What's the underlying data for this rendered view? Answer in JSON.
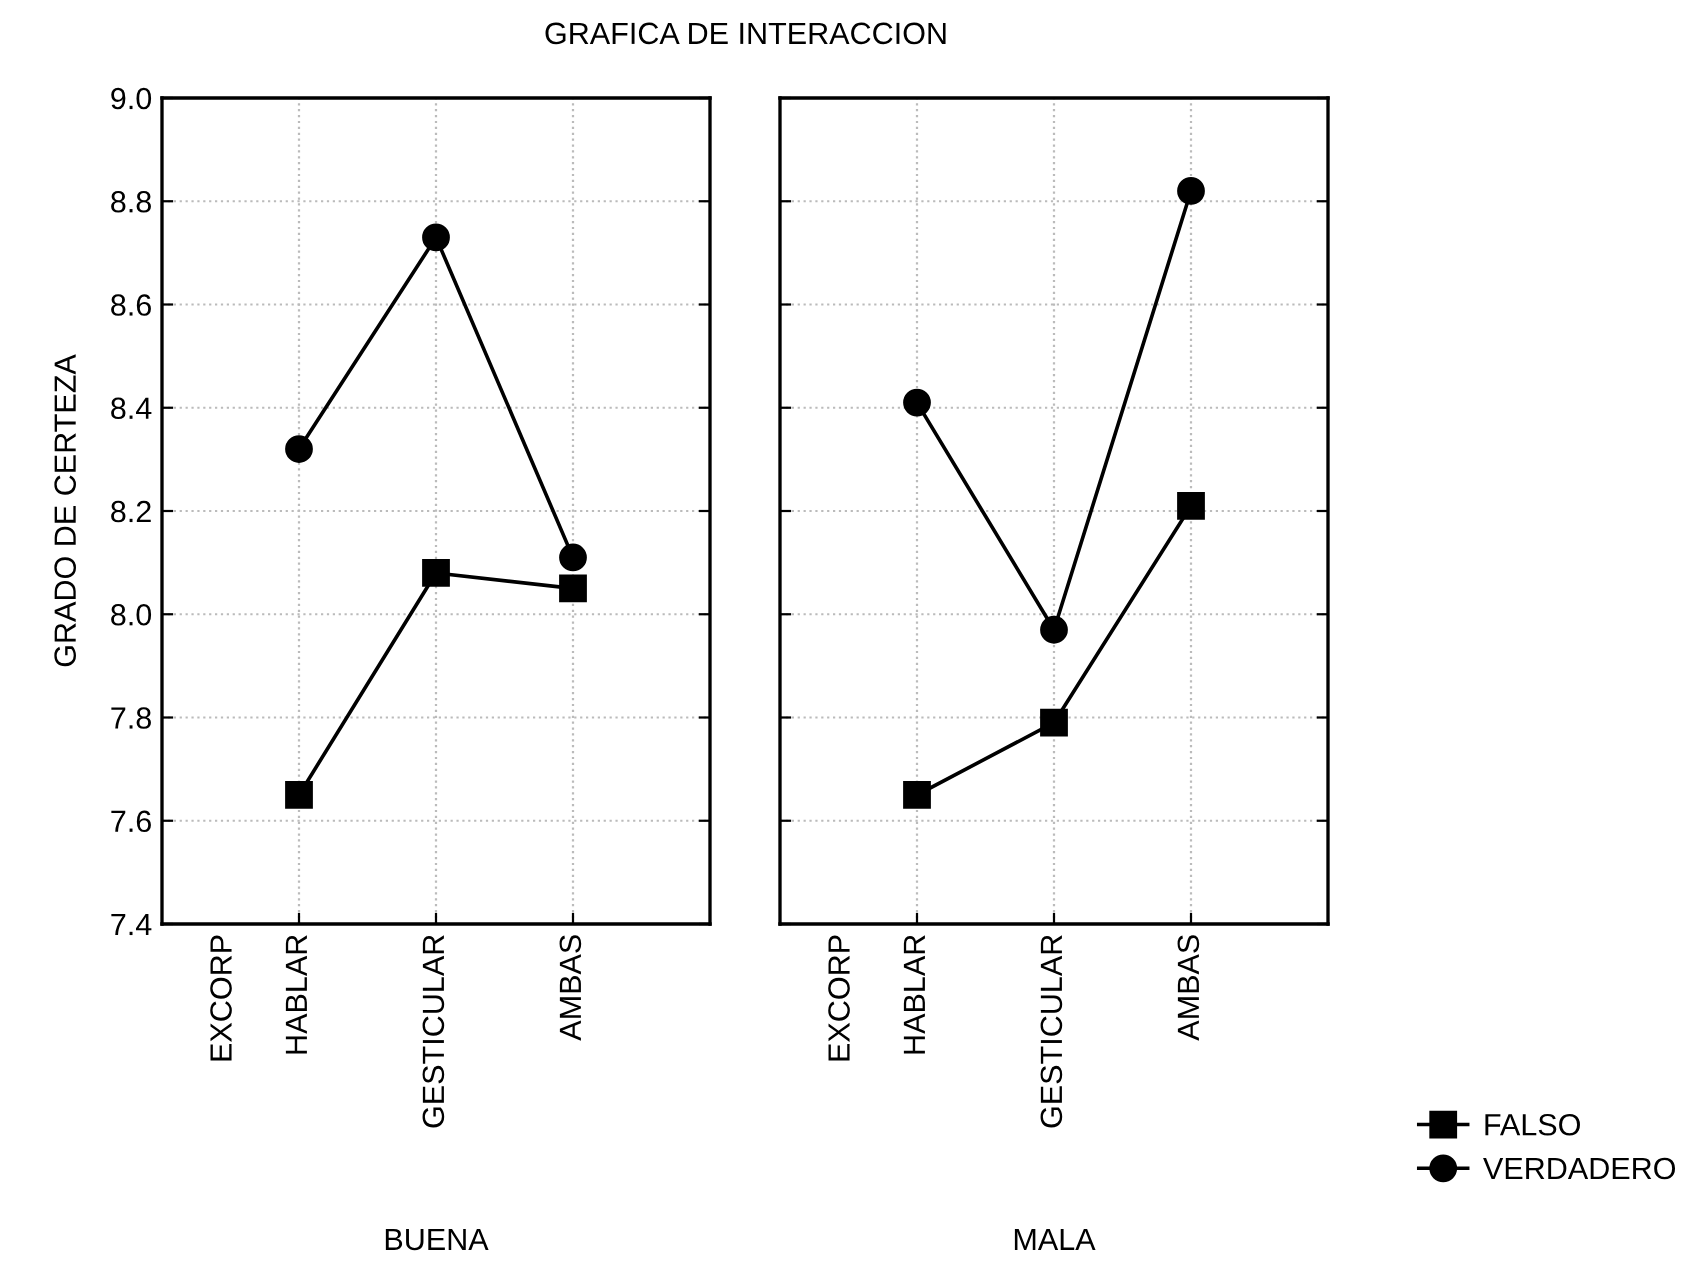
{
  "chart_data": [
    {
      "type": "line",
      "title": "GRAFICA DE INTERACCION",
      "ylabel": "GRADO DE CERTEZA",
      "xlabel": "BUENA",
      "annotations": [
        "EXCORP"
      ],
      "categories": [
        "HABLAR",
        "GESTICULAR",
        "AMBAS"
      ],
      "series": [
        {
          "name": "FALSO",
          "color": "#000000",
          "marker": "square",
          "values": [
            7.65,
            8.08,
            8.05
          ]
        },
        {
          "name": "VERDADERO",
          "color": "#000000",
          "marker": "circle",
          "values": [
            8.32,
            8.73,
            8.11
          ]
        }
      ],
      "ylim": [
        7.4,
        9.0
      ],
      "yticks": [
        7.4,
        7.6,
        7.8,
        {
          "value": 8.0,
          "label": "8.0"
        },
        8.2,
        8.4,
        8.6,
        8.8,
        {
          "value": 9.0,
          "label": "9.0"
        }
      ],
      "grid": true,
      "line_style": "solid",
      "legend": "bottom right"
    },
    {
      "type": "line",
      "xlabel": "MALA",
      "annotations": [
        "EXCORP"
      ],
      "categories": [
        "HABLAR",
        "GESTICULAR",
        "AMBAS"
      ],
      "series": [
        {
          "color": "#000000",
          "marker": "square",
          "values": [
            7.65,
            7.79,
            8.21
          ]
        },
        {
          "color": "#000000",
          "marker": "circle",
          "values": [
            8.41,
            7.97,
            8.82
          ]
        }
      ],
      "ylim": [
        7.4,
        9.0
      ],
      "yticks": [
        7.4,
        7.6,
        7.8,
        8.0,
        8.2,
        8.4,
        8.6,
        8.8,
        9.0
      ],
      "grid": true,
      "line_style": "solid",
      "tick_labels": "x"
    }
  ]
}
